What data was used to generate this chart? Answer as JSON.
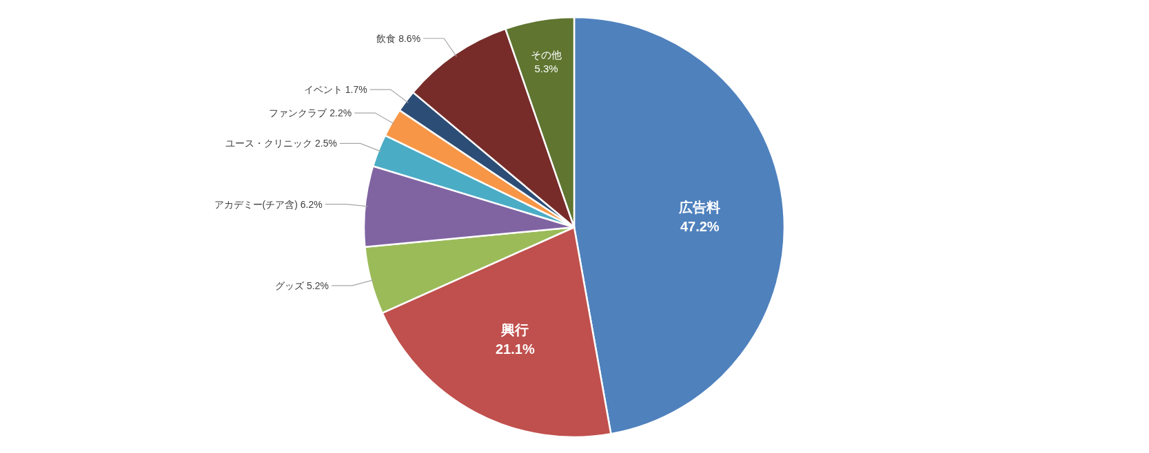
{
  "chart_data": {
    "type": "pie",
    "categories": [
      "広告料",
      "興行",
      "グッズ",
      "アカデミー(チア含)",
      "ユース・クリニック",
      "ファンクラブ",
      "イベント",
      "飲食",
      "その他"
    ],
    "values": [
      47.2,
      21.1,
      5.2,
      6.2,
      2.5,
      2.2,
      1.7,
      8.6,
      5.3
    ],
    "colors": [
      "#4f81bd",
      "#c0504d",
      "#9bbb59",
      "#8064a2",
      "#4bacc6",
      "#f79646",
      "#2c4d75",
      "#772c2a",
      "#5f7530"
    ],
    "value_labels": [
      "47.2%",
      "21.1%",
      "5.2%",
      "6.2%",
      "2.5%",
      "2.2%",
      "1.7%",
      "8.6%",
      "5.3%"
    ]
  }
}
